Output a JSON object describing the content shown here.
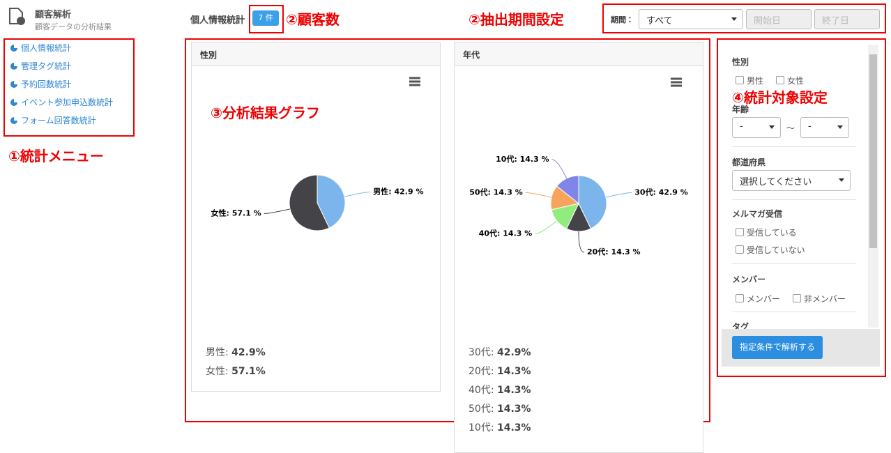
{
  "header": {
    "title": "顧客解析",
    "subtitle": "顧客データの分析結果"
  },
  "menu": [
    "個人情報統計",
    "管理タグ統計",
    "予約回数統計",
    "イベント参加申込数統計",
    "フォーム回答数統計"
  ],
  "toolbar": {
    "label": "個人情報統計",
    "count": "7 件",
    "period_label": "期間：",
    "period": "すべて",
    "start": "開始日",
    "end": "終了日"
  },
  "annotations": [
    "①統計メニュー",
    "②顧客数",
    "②抽出期間設定",
    "③分析結果グラフ",
    "④統計対象設定"
  ],
  "chart_data": [
    {
      "type": "pie",
      "title": "性別",
      "categories": [
        "男性",
        "女性"
      ],
      "values": [
        42.9,
        57.1
      ],
      "value_labels": [
        "男性: 42.9 %",
        "女性: 57.1 %"
      ],
      "colors": [
        "#7cb5ec",
        "#434348"
      ],
      "summary": [
        {
          "label": "男性:",
          "value": "42.9%"
        },
        {
          "label": "女性:",
          "value": "57.1%"
        }
      ]
    },
    {
      "type": "pie",
      "title": "年代",
      "categories": [
        "30代",
        "20代",
        "40代",
        "50代",
        "10代"
      ],
      "values": [
        42.9,
        14.3,
        14.3,
        14.3,
        14.3
      ],
      "value_labels": [
        "30代: 42.9 %",
        "20代: 14.3 %",
        "40代: 14.3 %",
        "50代: 14.3 %",
        "10代: 14.3 %"
      ],
      "colors": [
        "#7cb5ec",
        "#434348",
        "#90ed7d",
        "#f7a35c",
        "#8085e9"
      ],
      "summary": [
        {
          "label": "30代:",
          "value": "42.9%"
        },
        {
          "label": "20代:",
          "value": "14.3%"
        },
        {
          "label": "40代:",
          "value": "14.3%"
        },
        {
          "label": "50代:",
          "value": "14.3%"
        },
        {
          "label": "10代:",
          "value": "14.3%"
        }
      ]
    }
  ],
  "filters": {
    "gender": {
      "title": "性別",
      "options": [
        "男性",
        "女性"
      ]
    },
    "age": {
      "title": "年齢",
      "from": "-",
      "sep": "～",
      "to": "-"
    },
    "pref": {
      "title": "都道府県",
      "placeholder": "選択してください"
    },
    "mail": {
      "title": "メルマガ受信",
      "options": [
        "受信している",
        "受信していない"
      ]
    },
    "member": {
      "title": "メンバー",
      "options": [
        "メンバー",
        "非メンバー"
      ]
    },
    "tag": {
      "title": "タグ"
    },
    "button": "指定条件で解析する"
  }
}
